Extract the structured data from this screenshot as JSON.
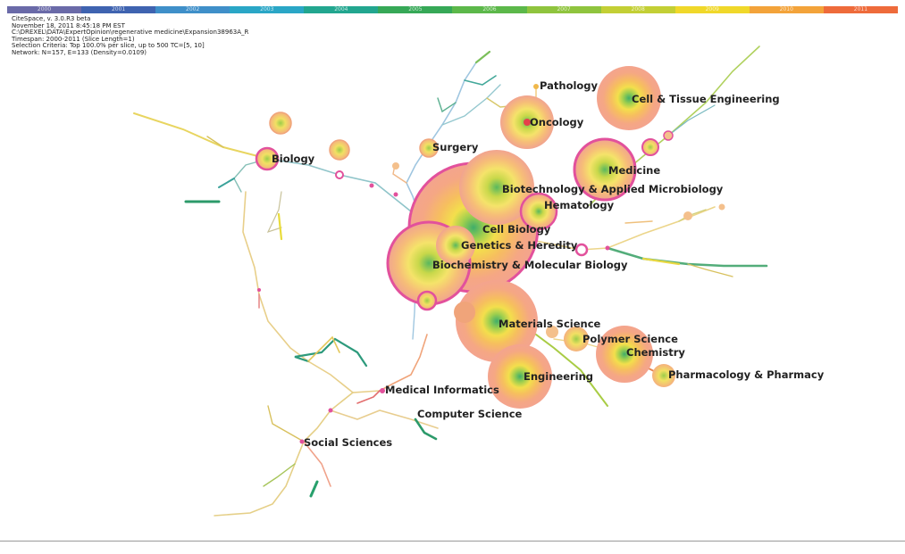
{
  "timeline": {
    "years": [
      "2000",
      "2001",
      "2002",
      "2003",
      "2004",
      "2005",
      "2006",
      "2007",
      "2008",
      "2009",
      "2010",
      "2011"
    ],
    "colors": [
      "#6a6aa8",
      "#3f63b0",
      "#3f8fc9",
      "#2aa6c6",
      "#22a68f",
      "#36a857",
      "#5cb84a",
      "#8fc43e",
      "#c3cf35",
      "#f0d82a",
      "#f3a33a",
      "#ee6b3b"
    ]
  },
  "info": {
    "line1": "CiteSpace, v. 3.0.R3 beta",
    "line2": "November 18, 2011 8:45:18 PM EST",
    "line3": "C:\\DREXEL\\DATA\\ExpertOpinion\\regenerative medicine\\Expansion38963A_R",
    "line4": "Timespan: 2000-2011 (Slice Length=1)",
    "line5": "Selection Criteria: Top 100.0% per slice, up to 500 TC=[5, 10]",
    "line6": "Network: N=157, E=133 (Density=0.0109)"
  },
  "labels": {
    "pathology": "Pathology",
    "cell_tissue": "Cell & Tissue Engineering",
    "oncology": "Oncology",
    "surgery": "Surgery",
    "biology": "Biology",
    "medicine": "Medicine",
    "biotech": "Biotechnology & Applied Microbiology",
    "hematology": "Hematology",
    "cell_biology": "Cell Biology",
    "genetics": "Genetics & Heredity",
    "biochem": "Biochemistry & Molecular Biology",
    "materials": "Materials Science",
    "polymer": "Polymer Science",
    "chemistry": "Chemistry",
    "pharmacology": "Pharmacology & Pharmacy",
    "engineering": "Engineering",
    "medical_informatics": "Medical Informatics",
    "computer_science": "Computer Science",
    "social_sciences": "Social Sciences"
  }
}
